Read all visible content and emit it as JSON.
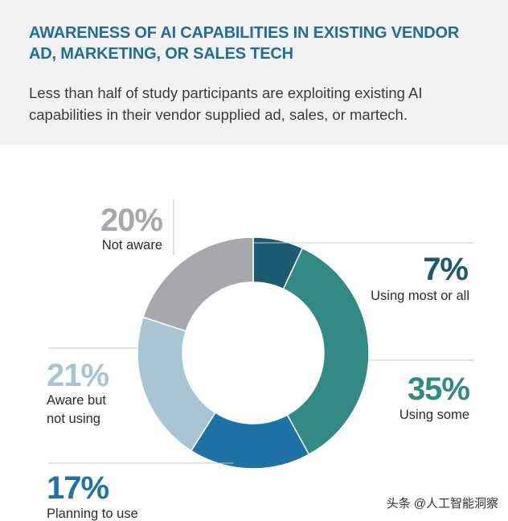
{
  "header": {
    "title": "AWARENESS OF AI CAPABILITIES IN EXISTING VENDOR AD, MARKETING, OR SALES TECH",
    "subtitle": "Less than half of study participants are exploiting existing AI capabilities  in their vendor supplied ad, sales, or martech."
  },
  "chart_data": {
    "type": "pie",
    "variant": "donut",
    "title": "AWARENESS OF AI CAPABILITIES IN EXISTING VENDOR AD, MARKETING, OR SALES TECH",
    "subtitle": "Less than half of study participants are exploiting existing AI capabilities  in their vendor supplied ad, sales, or martech.",
    "slices": [
      {
        "label": "Using most or all",
        "value": 7,
        "display": "7%",
        "color": "#1b5a70"
      },
      {
        "label": "Using some",
        "value": 35,
        "display": "35%",
        "color": "#338a84"
      },
      {
        "label": "Planning to use",
        "value": 17,
        "display": "17%",
        "color": "#1f72a4"
      },
      {
        "label": "Aware but not using",
        "value": 21,
        "display": "21%",
        "color": "#a9c4d2"
      },
      {
        "label": "Not aware",
        "value": 20,
        "display": "20%",
        "color": "#a7a8ab"
      }
    ],
    "label_colors": {
      "Using most or all": "#1b5a70",
      "Using some": "#338a84",
      "Planning to use": "#1f72a4",
      "Aware but not using": "#a9c4d2",
      "Not aware": "#a7a8ab"
    }
  },
  "watermark": "头条 @人工智能洞察"
}
